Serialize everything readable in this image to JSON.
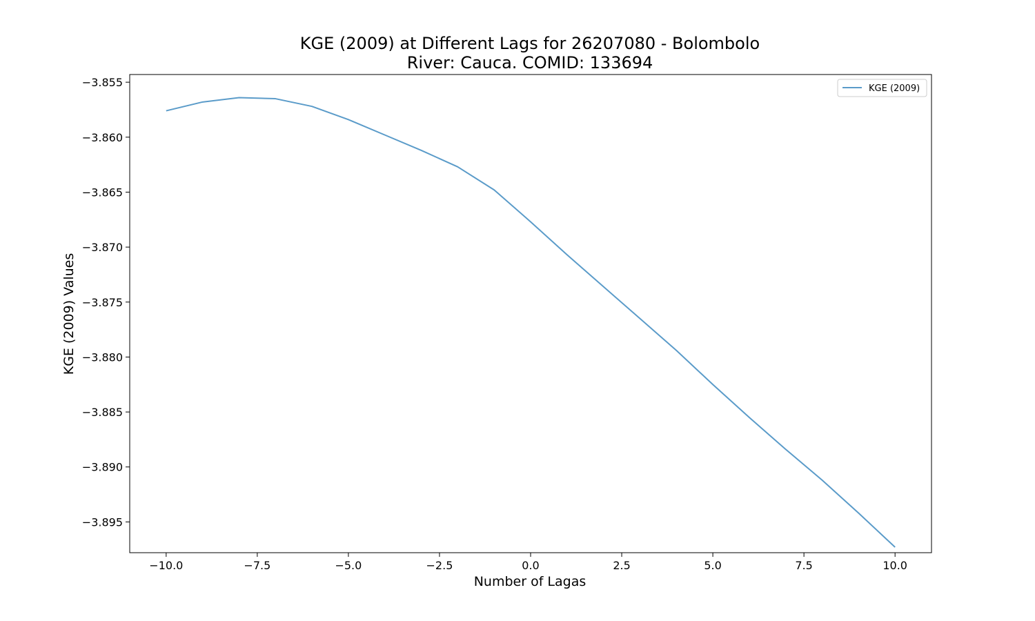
{
  "chart_data": {
    "type": "line",
    "title": "KGE (2009) at Different Lags for 26207080 - Bolombolo",
    "subtitle": "River: Cauca. COMID: 133694",
    "xlabel": "Number of Lagas",
    "ylabel": "KGE (2009) Values",
    "xlim": [
      -11.0,
      11.0
    ],
    "ylim": [
      -3.8978,
      -3.8543
    ],
    "xticks": [
      -10.0,
      -7.5,
      -5.0,
      -2.5,
      0.0,
      2.5,
      5.0,
      7.5,
      10.0
    ],
    "xtick_labels": [
      "−10.0",
      "−7.5",
      "−5.0",
      "−2.5",
      "0.0",
      "2.5",
      "5.0",
      "7.5",
      "10.0"
    ],
    "yticks": [
      -3.855,
      -3.86,
      -3.865,
      -3.87,
      -3.875,
      -3.88,
      -3.885,
      -3.89,
      -3.895
    ],
    "ytick_labels": [
      "−3.855",
      "−3.860",
      "−3.865",
      "−3.870",
      "−3.875",
      "−3.880",
      "−3.885",
      "−3.890",
      "−3.895"
    ],
    "grid": false,
    "legend_position": "top-right",
    "series": [
      {
        "name": "KGE (2009)",
        "color": "#5a9bc9",
        "x": [
          -10,
          -9,
          -8,
          -7,
          -6,
          -5,
          -4,
          -3,
          -2,
          -1,
          0,
          1,
          2,
          3,
          4,
          5,
          6,
          7,
          8,
          9,
          10
        ],
        "y": [
          -3.8576,
          -3.8568,
          -3.8564,
          -3.8565,
          -3.8572,
          -3.8584,
          -3.8598,
          -3.8612,
          -3.8627,
          -3.8648,
          -3.8677,
          -3.8707,
          -3.8736,
          -3.8765,
          -3.8794,
          -3.8825,
          -3.8855,
          -3.8884,
          -3.8912,
          -3.8942,
          -3.8973
        ]
      }
    ]
  }
}
